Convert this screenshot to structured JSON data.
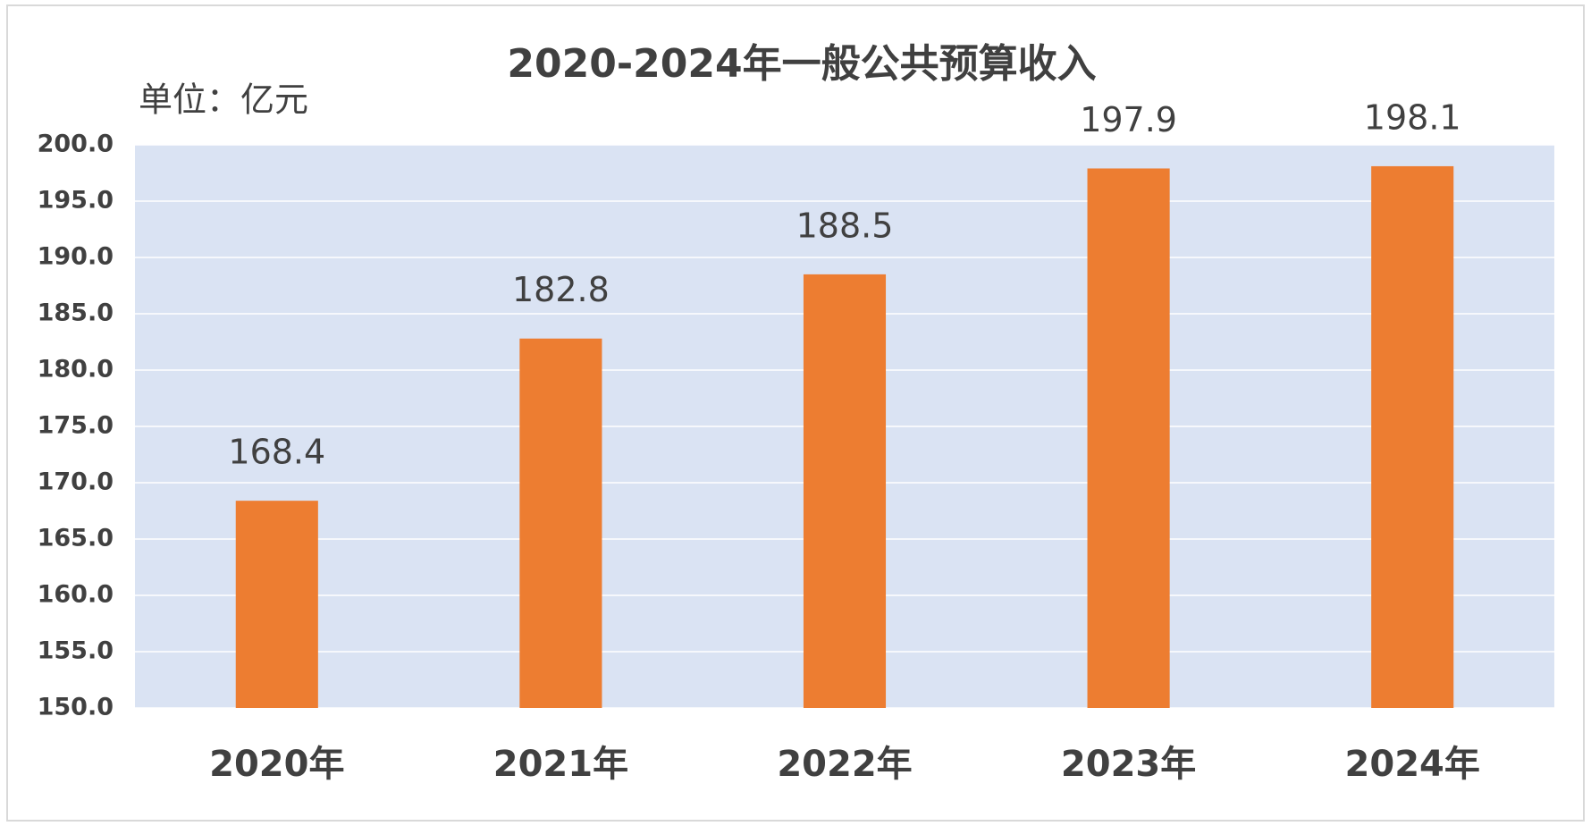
{
  "chart_data": {
    "type": "bar",
    "title": "2020-2024年一般公共预算收入",
    "subtitle": "单位：亿元",
    "categories": [
      "2020年",
      "2021年",
      "2022年",
      "2023年",
      "2024年"
    ],
    "values": [
      168.4,
      182.8,
      188.5,
      197.9,
      198.1
    ],
    "color": "#ed7d31",
    "background": "#dae3f3",
    "ylim": [
      150,
      200
    ],
    "yticks": [
      {
        "value": 150,
        "label": "150.0"
      },
      {
        "value": 155,
        "label": "155.0"
      },
      {
        "value": 160,
        "label": "160.0"
      },
      {
        "value": 165,
        "label": "165.0"
      },
      {
        "value": 170,
        "label": "170.0"
      },
      {
        "value": 175,
        "label": "175.0"
      },
      {
        "value": 180,
        "label": "180.0"
      },
      {
        "value": 185,
        "label": "185.0"
      },
      {
        "value": 190,
        "label": "190.0"
      },
      {
        "value": 195,
        "label": "195.0"
      },
      {
        "value": 200,
        "label": "200.0"
      }
    ],
    "grid": true
  }
}
